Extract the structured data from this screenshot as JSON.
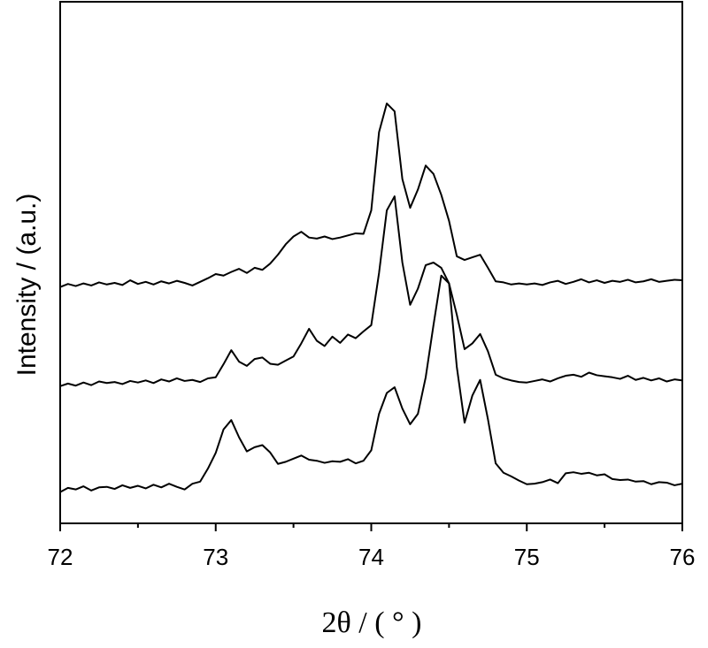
{
  "chart_data": {
    "type": "line",
    "xlabel": "2θ / ( ° )",
    "ylabel": "Intensity / (a.u.)",
    "xlim": [
      72,
      76
    ],
    "xticks": [
      72,
      73,
      74,
      75,
      76
    ],
    "xminorticks": [
      72.5,
      73.5,
      74.5,
      75.5
    ],
    "ylim": [
      0,
      100
    ],
    "grid": false,
    "x": [
      72.0,
      72.05,
      72.1,
      72.15,
      72.2,
      72.25,
      72.3,
      72.35,
      72.4,
      72.45,
      72.5,
      72.55,
      72.6,
      72.65,
      72.7,
      72.75,
      72.8,
      72.85,
      72.9,
      72.95,
      73.0,
      73.05,
      73.1,
      73.15,
      73.2,
      73.25,
      73.3,
      73.35,
      73.4,
      73.45,
      73.5,
      73.55,
      73.6,
      73.65,
      73.7,
      73.75,
      73.8,
      73.85,
      73.9,
      73.95,
      74.0,
      74.05,
      74.1,
      74.15,
      74.2,
      74.25,
      74.3,
      74.35,
      74.4,
      74.45,
      74.5,
      74.55,
      74.6,
      74.65,
      74.7,
      74.75,
      74.8,
      74.85,
      74.9,
      74.95,
      75.0,
      75.05,
      75.1,
      75.15,
      75.2,
      75.25,
      75.3,
      75.35,
      75.4,
      75.45,
      75.5,
      75.55,
      75.6,
      75.65,
      75.7,
      75.75,
      75.8,
      75.85,
      75.9,
      75.95,
      76.0
    ],
    "series": [
      {
        "color": "#000000",
        "values": [
          6.0,
          6.8,
          6.5,
          7.1,
          6.3,
          6.9,
          7.0,
          6.6,
          7.3,
          6.8,
          7.2,
          6.7,
          7.4,
          6.9,
          7.6,
          7.0,
          6.5,
          7.6,
          8.0,
          10.5,
          13.5,
          18.0,
          19.8,
          16.5,
          13.8,
          14.6,
          15.0,
          13.6,
          11.4,
          11.8,
          12.4,
          13.0,
          12.2,
          12.0,
          11.6,
          11.9,
          11.8,
          12.3,
          11.5,
          12.0,
          14.0,
          21.0,
          25.0,
          26.1,
          22.0,
          19.0,
          21.0,
          28.0,
          38.0,
          47.5,
          46.0,
          30.0,
          19.3,
          24.5,
          27.5,
          20.0,
          11.5,
          9.7,
          9.0,
          8.2,
          7.5,
          7.6,
          7.9,
          8.4,
          7.7,
          9.6,
          9.8,
          9.5,
          9.7,
          9.2,
          9.4,
          8.5,
          8.3,
          8.4,
          8.0,
          8.1,
          7.5,
          7.9,
          7.8,
          7.3,
          7.6
        ]
      },
      {
        "color": "#000000",
        "values": [
          26.3,
          26.8,
          26.4,
          27.0,
          26.5,
          27.2,
          26.9,
          27.1,
          26.7,
          27.3,
          27.0,
          27.4,
          26.9,
          27.6,
          27.2,
          27.8,
          27.3,
          27.5,
          27.1,
          27.8,
          28.0,
          30.5,
          33.2,
          31.0,
          30.2,
          31.5,
          31.8,
          30.6,
          30.4,
          31.2,
          32.0,
          34.5,
          37.3,
          35.0,
          34.0,
          35.8,
          34.6,
          36.2,
          35.5,
          36.8,
          38.0,
          48.0,
          60.0,
          62.7,
          50.0,
          41.9,
          45.0,
          49.5,
          50.0,
          49.0,
          46.0,
          40.0,
          33.4,
          34.5,
          36.3,
          33.0,
          28.5,
          27.8,
          27.4,
          27.1,
          27.0,
          27.3,
          27.6,
          27.2,
          27.8,
          28.3,
          28.5,
          28.1,
          28.9,
          28.4,
          28.2,
          28.0,
          27.7,
          28.3,
          27.5,
          27.9,
          27.4,
          27.8,
          27.2,
          27.6,
          27.4
        ]
      },
      {
        "color": "#000000",
        "values": [
          45.3,
          45.9,
          45.5,
          46.0,
          45.6,
          46.2,
          45.8,
          46.1,
          45.7,
          46.6,
          45.9,
          46.3,
          45.8,
          46.4,
          46.0,
          46.5,
          46.1,
          45.6,
          46.3,
          47.0,
          47.8,
          47.5,
          48.2,
          48.8,
          48.0,
          49.0,
          48.6,
          49.8,
          51.5,
          53.5,
          55.0,
          55.9,
          54.8,
          54.6,
          55.0,
          54.5,
          54.8,
          55.2,
          55.6,
          55.5,
          60.0,
          75.0,
          80.5,
          79.0,
          66.0,
          60.5,
          64.0,
          68.6,
          67.0,
          63.0,
          58.0,
          51.2,
          50.5,
          51.0,
          51.5,
          49.0,
          46.4,
          46.2,
          45.8,
          46.0,
          45.8,
          46.0,
          45.7,
          46.2,
          46.5,
          45.9,
          46.3,
          46.8,
          46.2,
          46.6,
          46.1,
          46.5,
          46.3,
          46.7,
          46.2,
          46.4,
          46.8,
          46.3,
          46.5,
          46.7,
          46.6
        ]
      }
    ]
  }
}
